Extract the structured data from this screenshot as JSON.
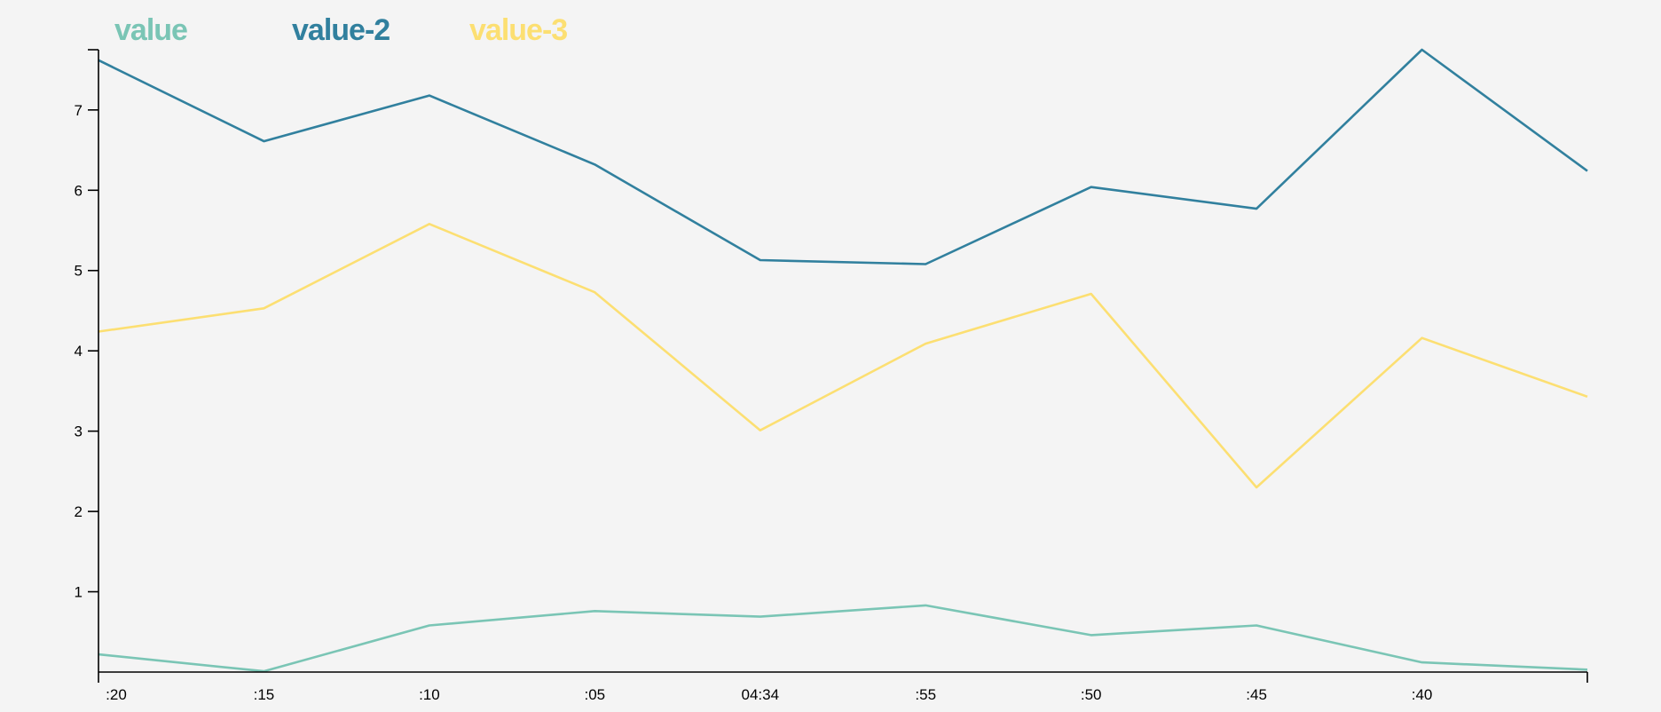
{
  "chart_data": {
    "type": "line",
    "x": [
      ":20",
      ":15",
      ":10",
      ":05",
      "04:34",
      ":55",
      ":50",
      ":45",
      ":40",
      ""
    ],
    "x_tick_labels": [
      ":20",
      ":15",
      ":10",
      ":05",
      "04:34",
      ":55",
      ":50",
      ":45",
      ":40"
    ],
    "y_ticks": [
      1,
      2,
      3,
      4,
      5,
      6,
      7
    ],
    "ylim": [
      0,
      7.75
    ],
    "grid": false,
    "legend": "top-left",
    "series": [
      {
        "name": "value",
        "color": "#7ac5b5",
        "values": [
          0.22,
          0.01,
          0.58,
          0.76,
          0.69,
          0.83,
          0.46,
          0.58,
          0.12,
          0.03
        ]
      },
      {
        "name": "value-2",
        "color": "#31809e",
        "values": [
          7.62,
          6.61,
          7.18,
          6.32,
          5.13,
          5.08,
          6.04,
          5.77,
          7.75,
          6.24
        ]
      },
      {
        "name": "value-3",
        "color": "#fcdf72",
        "values": [
          4.24,
          4.53,
          5.58,
          4.73,
          3.01,
          4.09,
          4.71,
          2.3,
          4.16,
          3.43
        ]
      }
    ],
    "title": "",
    "xlabel": "",
    "ylabel": ""
  }
}
